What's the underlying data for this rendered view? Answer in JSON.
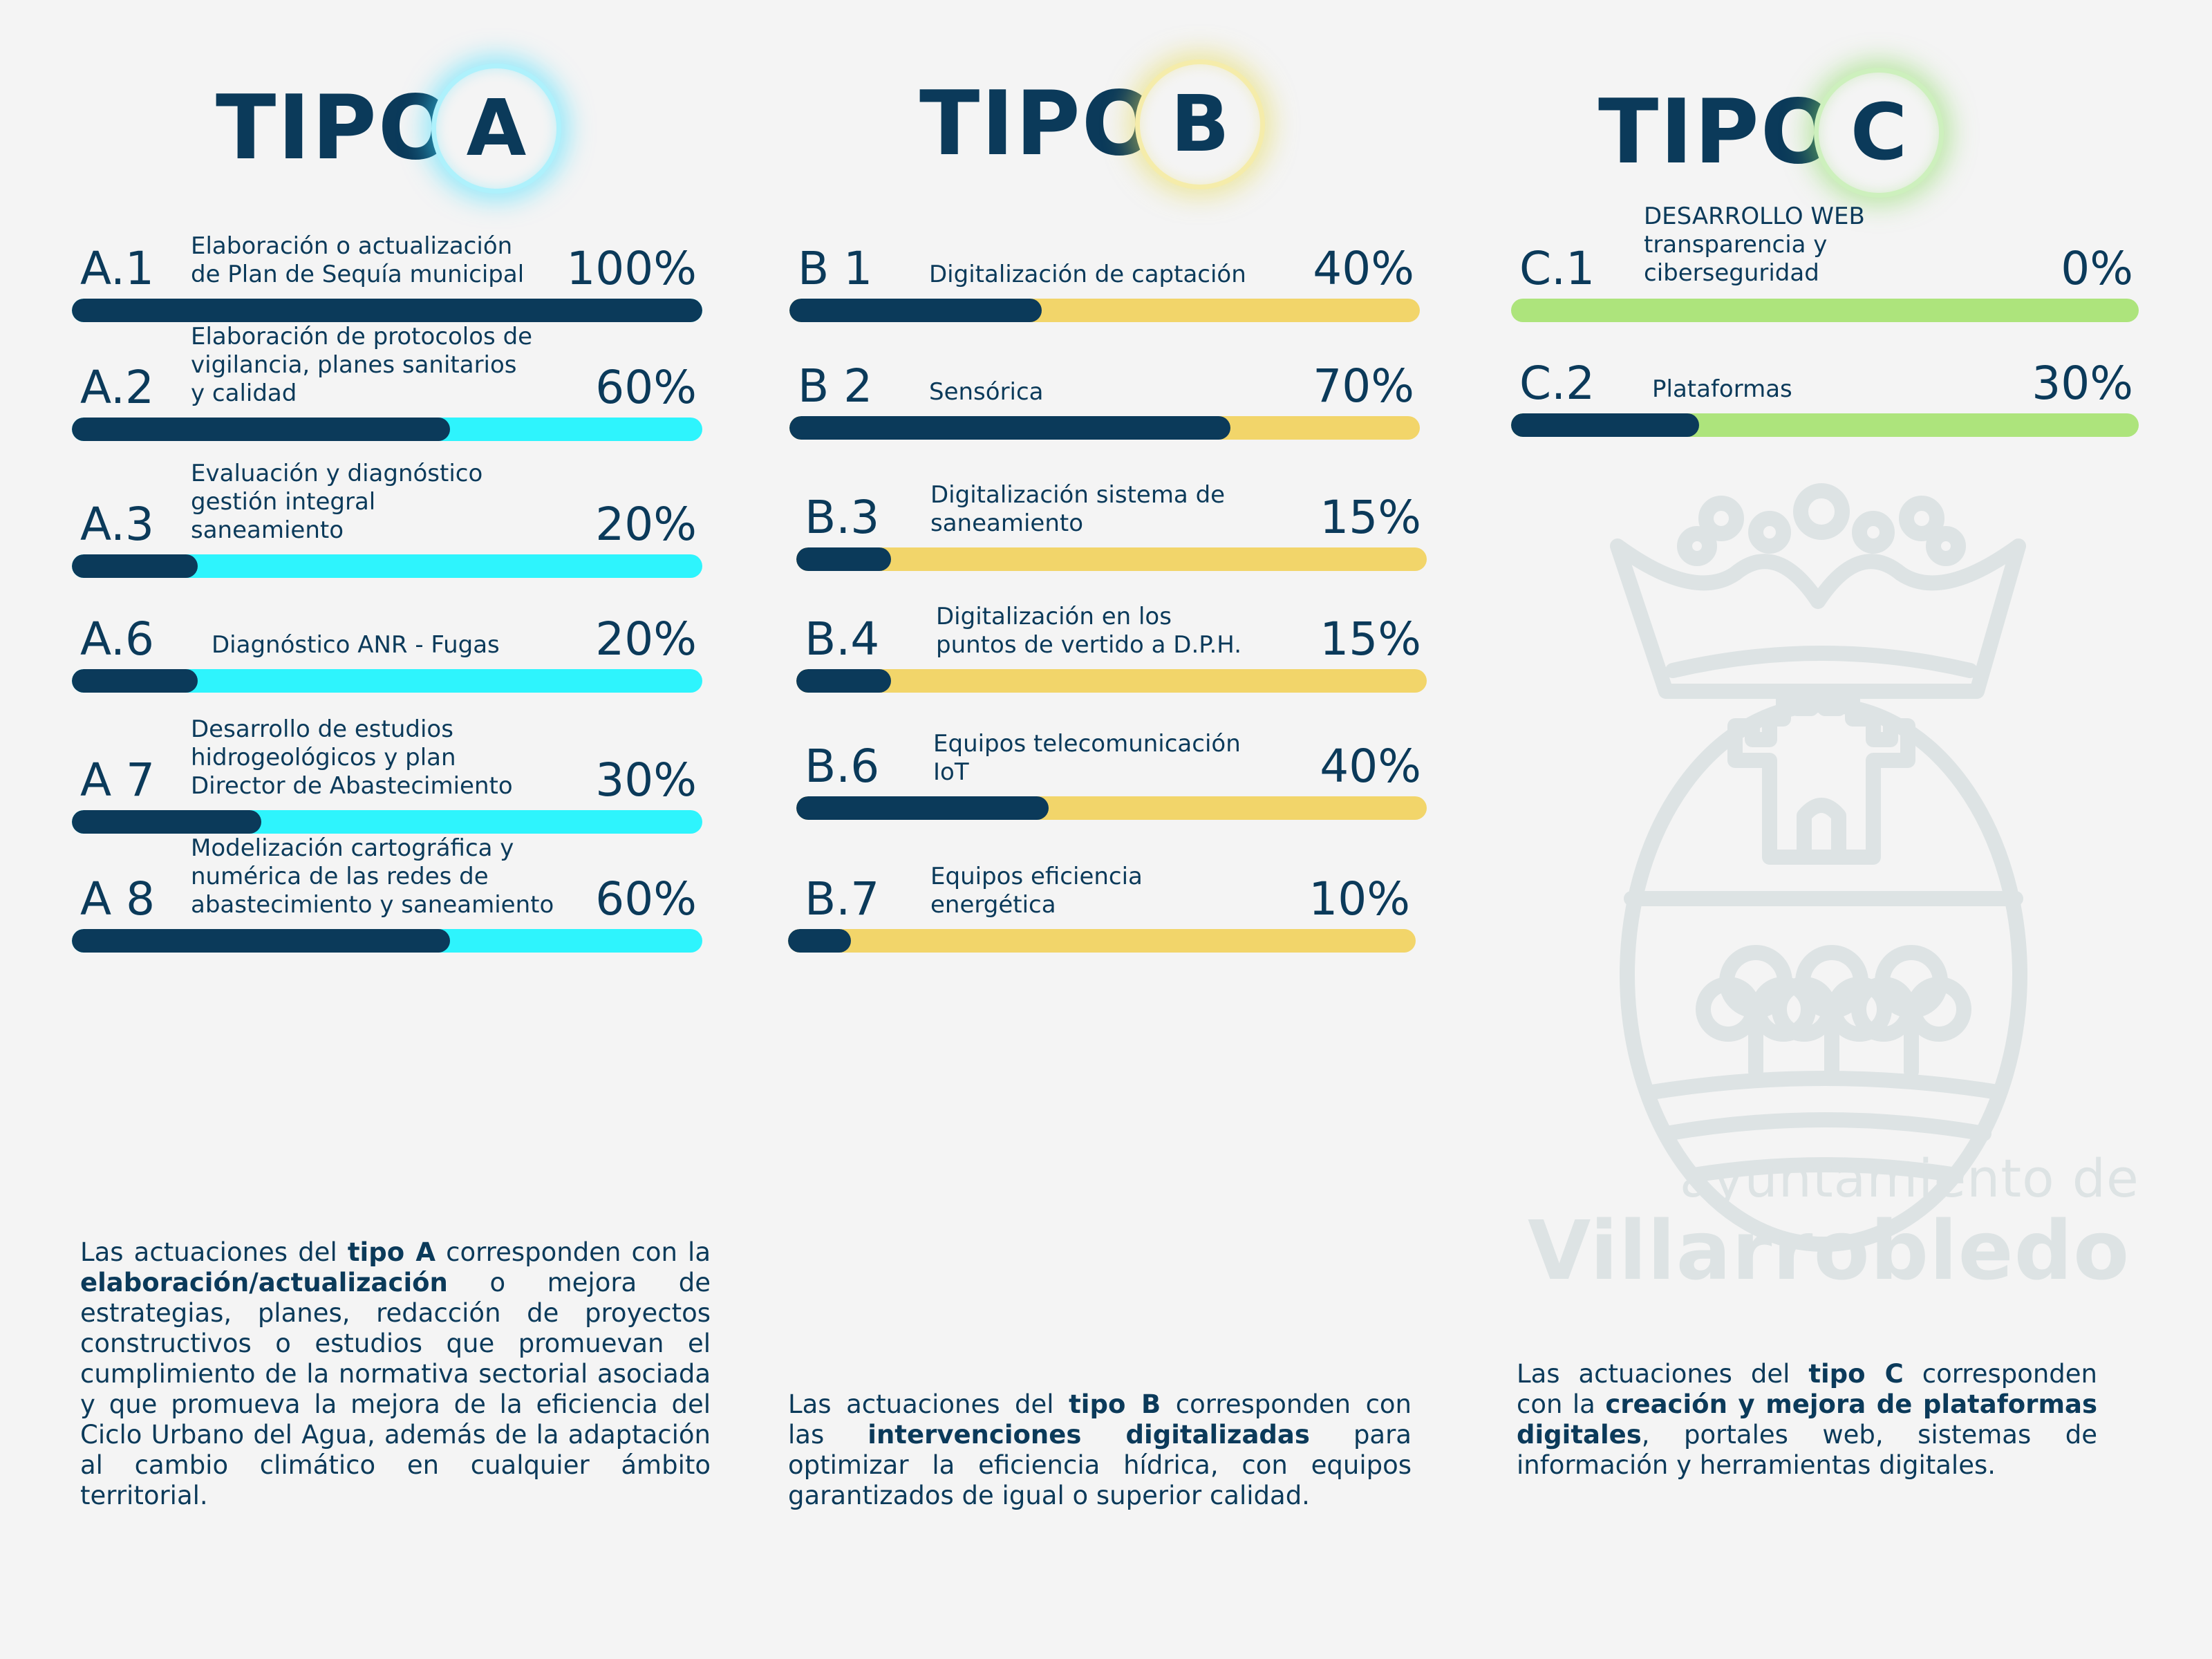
{
  "headers": {
    "a": {
      "word": "TIPO",
      "letter": "A"
    },
    "b": {
      "word": "TIPO",
      "letter": "B"
    },
    "c": {
      "word": "TIPO",
      "letter": "C"
    }
  },
  "colors": {
    "navy": "#0b3a5a",
    "cyan": "#2ef4fd",
    "yellow": "#f2d56a",
    "green": "#ade47c",
    "background": "#f4f4f4"
  },
  "tipo_a": [
    {
      "code": "A.1",
      "label": "Elaboración o actualización\nde Plan de Sequía municipal",
      "percent_text": "100%",
      "value": 100
    },
    {
      "code": "A.2",
      "label": "Elaboración de protocolos de\nvigilancia, planes sanitarios\ny calidad",
      "percent_text": "60%",
      "value": 60
    },
    {
      "code": "A.3",
      "label": "Evaluación y diagnóstico\ngestión integral\nsaneamiento",
      "percent_text": "20%",
      "value": 20
    },
    {
      "code": "A.6",
      "label": "Diagnóstico ANR - Fugas",
      "percent_text": "20%",
      "value": 20
    },
    {
      "code": "A 7",
      "label": "Desarrollo de estudios\nhidrogeológicos y plan\nDirector de Abastecimiento",
      "percent_text": "30%",
      "value": 30
    },
    {
      "code": "A 8",
      "label": "Modelización cartográfica y\nnumérica de las redes de\nabastecimiento y saneamiento",
      "percent_text": "60%",
      "value": 60
    }
  ],
  "tipo_b": [
    {
      "code": "B 1",
      "label": "Digitalización de captación",
      "percent_text": "40%",
      "value": 40
    },
    {
      "code": "B 2",
      "label": "Sensórica",
      "percent_text": "70%",
      "value": 70
    },
    {
      "code": "B.3",
      "label": "Digitalización sistema de\nsaneamiento",
      "percent_text": "15%",
      "value": 15
    },
    {
      "code": "B.4",
      "label": "Digitalización en los\npuntos de vertido a D.P.H.",
      "percent_text": "15%",
      "value": 15
    },
    {
      "code": "B.6",
      "label": "Equipos telecomunicación\nIoT",
      "percent_text": "40%",
      "value": 40
    },
    {
      "code": "B.7",
      "label": "Equipos eficiencia\nenergética",
      "percent_text": "10%",
      "value": 10
    }
  ],
  "tipo_c": [
    {
      "code": "C.1",
      "label": "DESARROLLO WEB\ntransparencia y\nciberseguridad",
      "percent_text": "0%",
      "value": 0
    },
    {
      "code": "C.2",
      "label": "Plataformas",
      "percent_text": "30%",
      "value": 30
    }
  ],
  "descriptions": {
    "a": {
      "t1": "Las actuaciones del ",
      "b1": "tipo A",
      "t2": " corresponden con la ",
      "b2": "elaboración/actualización",
      "t3": " o mejora de estrategias, planes, redacción de proyectos constructivos o estudios que promuevan el cumplimiento de la normativa sectorial asociada y que promueva la mejora de la eficiencia del Ciclo Urbano del Agua, además de la adaptación al cambio climático en cualquier ámbito territorial."
    },
    "b": {
      "t1": "Las actuaciones del ",
      "b1": "tipo B",
      "t2": " corresponden con las ",
      "b2": "intervenciones digitalizadas",
      "t3": " para optimizar la eficiencia hídrica, con equipos garantizados de igual o superior calidad."
    },
    "c": {
      "t1": "Las actuaciones del ",
      "b1": "tipo C",
      "t2": " corresponden con la ",
      "b2": "creación y mejora de plataformas digitales",
      "t3": ", portales web, sistemas de información y herramientas digitales."
    }
  },
  "watermark": {
    "line1": "ayuntamiento de",
    "line2": "Villarrobledo",
    "icon": "coat-of-arms-icon"
  }
}
